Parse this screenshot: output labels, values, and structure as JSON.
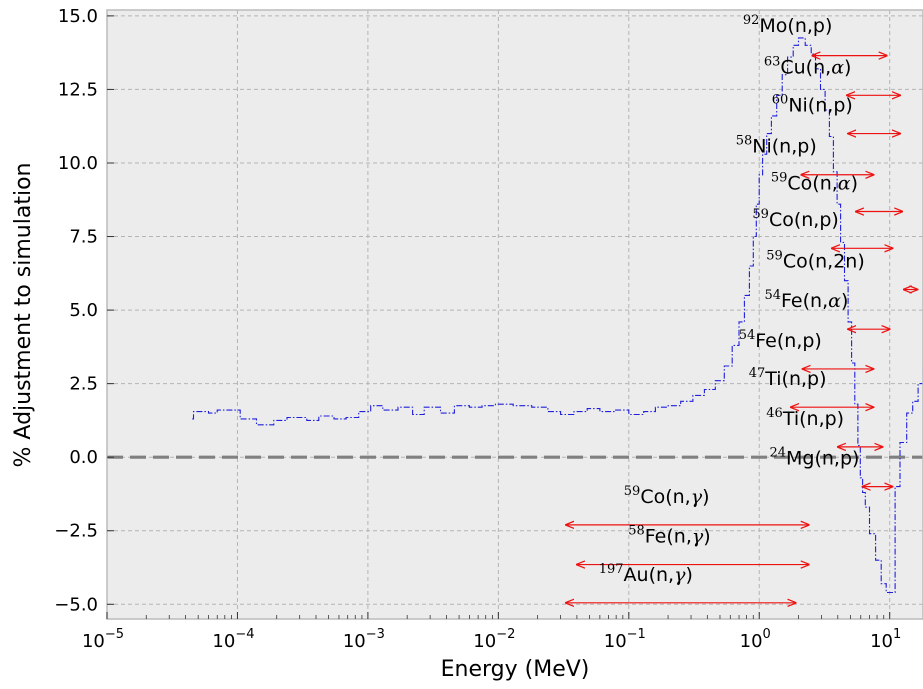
{
  "chart_data": {
    "type": "line",
    "xlabel": "Energy (MeV)",
    "ylabel": "% Adjustment to simulation",
    "xscale": "log",
    "xlim": [
      1e-05,
      18
    ],
    "ylim": [
      -5.5,
      15.2
    ],
    "x_ticks": [
      {
        "value": 1e-05,
        "base": "10",
        "exp": "−5"
      },
      {
        "value": 0.0001,
        "base": "10",
        "exp": "−4"
      },
      {
        "value": 0.001,
        "base": "10",
        "exp": "−3"
      },
      {
        "value": 0.01,
        "base": "10",
        "exp": "−2"
      },
      {
        "value": 0.1,
        "base": "10",
        "exp": "−1"
      },
      {
        "value": 1,
        "base": "10",
        "exp": "0"
      },
      {
        "value": 10,
        "base": "10",
        "exp": "1"
      }
    ],
    "y_ticks": [
      {
        "value": 15,
        "label": "15.0"
      },
      {
        "value": 12.5,
        "label": "12.5"
      },
      {
        "value": 10,
        "label": "10.0"
      },
      {
        "value": 7.5,
        "label": "7.5"
      },
      {
        "value": 5,
        "label": "5.0"
      },
      {
        "value": 2.5,
        "label": "2.5"
      },
      {
        "value": 0,
        "label": "0.0"
      },
      {
        "value": -2.5,
        "label": "−2.5"
      },
      {
        "value": -5,
        "label": "−5.0"
      }
    ],
    "grid": true,
    "reference_line": {
      "y": 0,
      "style": "dashed",
      "color": "#808080"
    },
    "series_color": "#1f1fdd",
    "arrow_color": "#ee1111",
    "background": "#ececec",
    "series": [
      {
        "style": "step",
        "points": [
          [
            4.5e-05,
            1.3
          ],
          [
            4.6e-05,
            1.55
          ],
          [
            6e-05,
            1.5
          ],
          [
            7e-05,
            1.6
          ],
          [
            0.000105,
            1.3
          ],
          [
            0.00014,
            1.1
          ],
          [
            0.00019,
            1.25
          ],
          [
            0.00024,
            1.35
          ],
          [
            0.00034,
            1.25
          ],
          [
            0.00042,
            1.4
          ],
          [
            0.00055,
            1.3
          ],
          [
            0.00068,
            1.35
          ],
          [
            0.00085,
            1.55
          ],
          [
            0.00105,
            1.75
          ],
          [
            0.0013,
            1.6
          ],
          [
            0.0017,
            1.7
          ],
          [
            0.0022,
            1.45
          ],
          [
            0.0027,
            1.7
          ],
          [
            0.0036,
            1.5
          ],
          [
            0.0046,
            1.75
          ],
          [
            0.006,
            1.7
          ],
          [
            0.0075,
            1.75
          ],
          [
            0.0095,
            1.8
          ],
          [
            0.013,
            1.75
          ],
          [
            0.018,
            1.7
          ],
          [
            0.024,
            1.55
          ],
          [
            0.03,
            1.45
          ],
          [
            0.038,
            1.55
          ],
          [
            0.048,
            1.65
          ],
          [
            0.06,
            1.55
          ],
          [
            0.078,
            1.6
          ],
          [
            0.1,
            1.45
          ],
          [
            0.13,
            1.55
          ],
          [
            0.16,
            1.7
          ],
          [
            0.2,
            1.75
          ],
          [
            0.25,
            1.9
          ],
          [
            0.31,
            2.1
          ],
          [
            0.38,
            2.3
          ],
          [
            0.46,
            2.6
          ],
          [
            0.54,
            3.1
          ],
          [
            0.62,
            3.8
          ],
          [
            0.7,
            4.6
          ],
          [
            0.77,
            5.5
          ],
          [
            0.84,
            6.5
          ],
          [
            0.9,
            7.5
          ],
          [
            0.95,
            8.6
          ],
          [
            1.0,
            9.6
          ],
          [
            1.06,
            10.3
          ],
          [
            1.14,
            11.0
          ],
          [
            1.24,
            11.6
          ],
          [
            1.36,
            12.3
          ],
          [
            1.5,
            13.0
          ],
          [
            1.65,
            13.6
          ],
          [
            1.82,
            14.0
          ],
          [
            2.0,
            14.25
          ],
          [
            2.25,
            14.0
          ],
          [
            2.5,
            13.7
          ],
          [
            2.7,
            13.2
          ],
          [
            2.95,
            12.5
          ],
          [
            3.2,
            11.8
          ],
          [
            3.45,
            10.9
          ],
          [
            3.7,
            9.7
          ],
          [
            3.95,
            8.6
          ],
          [
            4.2,
            7.3
          ],
          [
            4.5,
            6.0
          ],
          [
            4.8,
            4.6
          ],
          [
            5.1,
            3.2
          ],
          [
            5.4,
            1.8
          ],
          [
            5.7,
            0.4
          ],
          [
            5.95,
            -0.7
          ],
          [
            6.2,
            -1.2
          ],
          [
            6.5,
            -1.7
          ],
          [
            7.0,
            -2.6
          ],
          [
            7.8,
            -3.5
          ],
          [
            8.6,
            -4.3
          ],
          [
            9.4,
            -4.6
          ],
          [
            10.5,
            -4.6
          ],
          [
            11.0,
            -1.0
          ],
          [
            12.0,
            0.5
          ],
          [
            13.5,
            1.5
          ],
          [
            15.0,
            1.9
          ],
          [
            16.5,
            2.5
          ],
          [
            18.0,
            3.0
          ]
        ]
      }
    ],
    "annotations": [
      {
        "sup": "92",
        "label": "Mo(n,",
        "tail": "p)",
        "greek": "",
        "x0": 2.55,
        "x1": 9.5,
        "arrow_y": 13.65,
        "text_x": 1.65,
        "text_y": 14.45
      },
      {
        "sup": "63",
        "label": "Cu(n,",
        "tail": ")",
        "greek": "α",
        "x0": 4.7,
        "x1": 12.0,
        "arrow_y": 12.3,
        "text_x": 2.35,
        "text_y": 13.05
      },
      {
        "sup": "60",
        "label": "Ni(n,",
        "tail": "p)",
        "greek": "",
        "x0": 4.8,
        "x1": 12.0,
        "arrow_y": 11.0,
        "text_x": 2.55,
        "text_y": 11.75
      },
      {
        "sup": "58",
        "label": "Ni(n,",
        "tail": "p)",
        "greek": "",
        "x0": 2.1,
        "x1": 7.5,
        "arrow_y": 9.6,
        "text_x": 1.35,
        "text_y": 10.35
      },
      {
        "sup": "59",
        "label": "Co(n,",
        "tail": ")",
        "greek": "α",
        "x0": 5.5,
        "x1": 12.5,
        "arrow_y": 8.35,
        "text_x": 2.65,
        "text_y": 9.1
      },
      {
        "sup": "59",
        "label": "Co(n,",
        "tail": "p)",
        "greek": "",
        "x0": 3.6,
        "x1": 10.5,
        "arrow_y": 7.1,
        "text_x": 1.9,
        "text_y": 7.85
      },
      {
        "sup": "59",
        "label": "Co(n,",
        "tail": "2n)",
        "greek": "",
        "x0": 12.8,
        "x1": 16.3,
        "arrow_y": 5.7,
        "text_x": 2.7,
        "text_y": 6.45
      },
      {
        "sup": "54",
        "label": "Fe(n,",
        "tail": ")",
        "greek": "α",
        "x0": 4.8,
        "x1": 10.0,
        "arrow_y": 4.35,
        "text_x": 2.3,
        "text_y": 5.1
      },
      {
        "sup": "54",
        "label": "Fe(n,",
        "tail": "p)",
        "greek": "",
        "x0": 2.15,
        "x1": 7.5,
        "arrow_y": 3.0,
        "text_x": 1.45,
        "text_y": 3.75
      },
      {
        "sup": "47",
        "label": "Ti(n,",
        "tail": "p)",
        "greek": "",
        "x0": 1.75,
        "x1": 7.5,
        "arrow_y": 1.7,
        "text_x": 1.65,
        "text_y": 2.45
      },
      {
        "sup": "46",
        "label": "Ti(n,",
        "tail": "p)",
        "greek": "",
        "x0": 4.0,
        "x1": 8.8,
        "arrow_y": 0.35,
        "text_x": 2.25,
        "text_y": 1.1
      },
      {
        "sup": "24",
        "label": "Mg(n,",
        "tail": "p)",
        "greek": "",
        "x0": 6.2,
        "x1": 10.5,
        "arrow_y": -1.0,
        "text_x": 2.65,
        "text_y": -0.25
      },
      {
        "sup": "59",
        "label": "Co(n,",
        "tail": ")",
        "greek": "γ",
        "x0": 0.033,
        "x1": 2.4,
        "arrow_y": -2.3,
        "text_x": 0.195,
        "text_y": -1.55
      },
      {
        "sup": "58",
        "label": "Fe(n,",
        "tail": ")",
        "greek": "γ",
        "x0": 0.04,
        "x1": 2.4,
        "arrow_y": -3.65,
        "text_x": 0.205,
        "text_y": -2.9
      },
      {
        "sup": "197",
        "label": "Au(n,",
        "tail": ")",
        "greek": "γ",
        "x0": 0.033,
        "x1": 1.9,
        "arrow_y": -4.95,
        "text_x": 0.135,
        "text_y": -4.2
      }
    ]
  }
}
